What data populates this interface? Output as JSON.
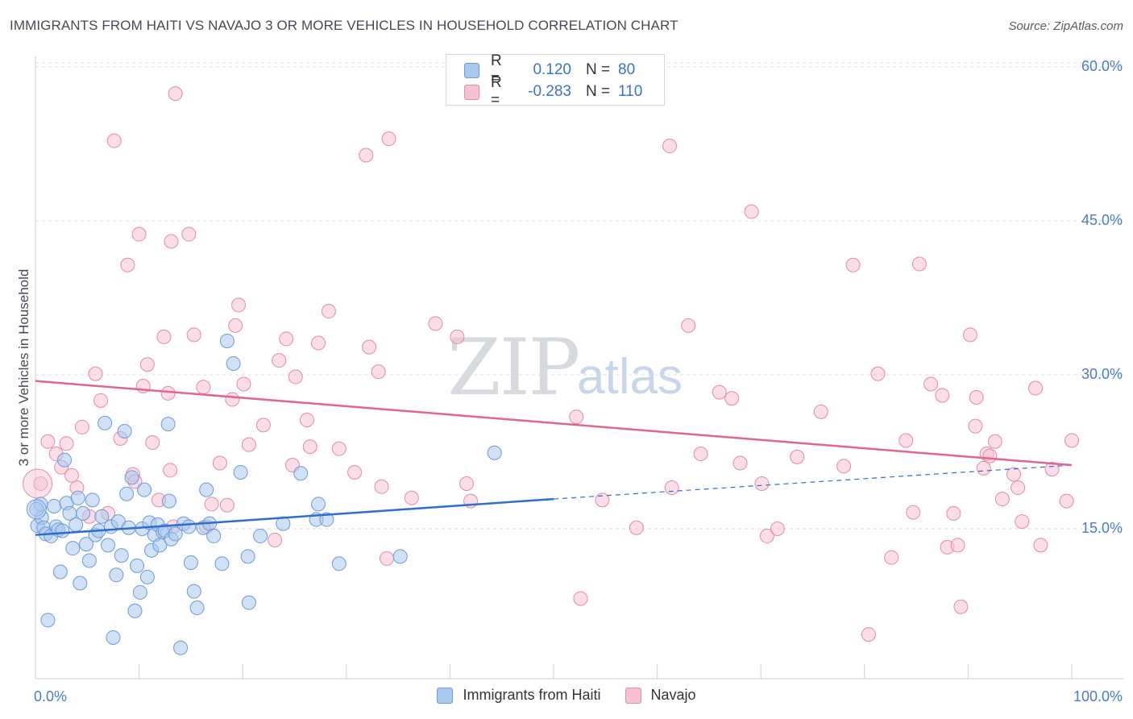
{
  "header": {
    "title": "IMMIGRANTS FROM HAITI VS NAVAJO 3 OR MORE VEHICLES IN HOUSEHOLD CORRELATION CHART",
    "source": "Source: ZipAtlas.com"
  },
  "watermark": {
    "zip": "ZIP",
    "atlas": "atlas"
  },
  "legend": {
    "rows": [
      {
        "r_label": "R =",
        "r_value": "0.120",
        "n_label": "N =",
        "n_value": "80",
        "color": "#a9c8ef",
        "stroke": "#6c9ad8"
      },
      {
        "r_label": "R =",
        "r_value": "-0.283",
        "n_label": "N =",
        "n_value": "110",
        "color": "#f6c1d2",
        "stroke": "#e58aa9"
      }
    ]
  },
  "bottom_legend": [
    {
      "label": "Immigrants from Haiti",
      "color": "#a9c8ef",
      "stroke": "#6c9ad8"
    },
    {
      "label": "Navajo",
      "color": "#f6c1d2",
      "stroke": "#e58aa9"
    }
  ],
  "chart_data": {
    "type": "scatter",
    "title": "IMMIGRANTS FROM HAITI VS NAVAJO 3 OR MORE VEHICLES IN HOUSEHOLD CORRELATION CHART",
    "xlabel": "",
    "ylabel": "3 or more Vehicles in Household",
    "xlim": [
      0,
      100
    ],
    "ylim": [
      0,
      60
    ],
    "x_tick_labels": [
      {
        "value": 0,
        "label": "0.0%"
      },
      {
        "value": 100,
        "label": "100.0%"
      }
    ],
    "y_tick_labels": [
      {
        "value": 15,
        "label": "15.0%"
      },
      {
        "value": 30,
        "label": "30.0%"
      },
      {
        "value": 45,
        "label": "45.0%"
      },
      {
        "value": 60,
        "label": "60.0%"
      }
    ],
    "grid": "horizontal dashed",
    "legend_position": "top-center",
    "series": [
      {
        "name": "Immigrants from Haiti",
        "color": "#a9c8ef",
        "stroke": "#6c9ad8",
        "trend": {
          "x0": 0,
          "y0": 15.5,
          "x1": 50,
          "y1": 19.0,
          "dash_to_x": 100,
          "dash_to_y": 22.3,
          "color": "#2d6fcc"
        },
        "points": [
          [
            0.2,
            16.4
          ],
          [
            0.5,
            18.5
          ],
          [
            0.6,
            17.2
          ],
          [
            0.8,
            16.2
          ],
          [
            1.0,
            15.6
          ],
          [
            1.2,
            7.2
          ],
          [
            1.5,
            15.4
          ],
          [
            1.8,
            18.3
          ],
          [
            2.0,
            16.3
          ],
          [
            2.2,
            16.0
          ],
          [
            2.4,
            11.9
          ],
          [
            2.6,
            15.9
          ],
          [
            2.8,
            22.8
          ],
          [
            3.0,
            18.6
          ],
          [
            3.3,
            17.6
          ],
          [
            3.6,
            14.2
          ],
          [
            3.9,
            16.5
          ],
          [
            4.1,
            19.1
          ],
          [
            4.3,
            10.8
          ],
          [
            4.6,
            17.6
          ],
          [
            4.9,
            14.6
          ],
          [
            5.2,
            13.0
          ],
          [
            5.5,
            18.9
          ],
          [
            5.8,
            15.5
          ],
          [
            6.1,
            15.9
          ],
          [
            6.4,
            17.3
          ],
          [
            6.7,
            26.4
          ],
          [
            7.0,
            14.5
          ],
          [
            7.3,
            16.3
          ],
          [
            7.5,
            5.5
          ],
          [
            7.8,
            11.6
          ],
          [
            8.0,
            16.8
          ],
          [
            8.3,
            13.5
          ],
          [
            8.6,
            25.6
          ],
          [
            8.8,
            19.5
          ],
          [
            9.0,
            16.2
          ],
          [
            9.3,
            21.1
          ],
          [
            9.6,
            8.1
          ],
          [
            9.8,
            12.5
          ],
          [
            10.1,
            9.9
          ],
          [
            10.3,
            16.1
          ],
          [
            10.5,
            19.9
          ],
          [
            10.8,
            11.4
          ],
          [
            11.0,
            16.7
          ],
          [
            11.2,
            14.0
          ],
          [
            11.5,
            15.5
          ],
          [
            11.8,
            16.5
          ],
          [
            12.0,
            14.5
          ],
          [
            12.3,
            15.8
          ],
          [
            12.5,
            15.9
          ],
          [
            12.8,
            26.3
          ],
          [
            12.9,
            18.8
          ],
          [
            13.1,
            15.1
          ],
          [
            13.5,
            15.6
          ],
          [
            14.0,
            4.5
          ],
          [
            14.3,
            16.6
          ],
          [
            14.8,
            16.3
          ],
          [
            15.0,
            12.8
          ],
          [
            15.3,
            10.0
          ],
          [
            15.6,
            8.4
          ],
          [
            16.2,
            16.2
          ],
          [
            16.5,
            19.9
          ],
          [
            16.8,
            16.6
          ],
          [
            17.2,
            15.4
          ],
          [
            18.0,
            12.7
          ],
          [
            18.5,
            34.4
          ],
          [
            19.1,
            32.2
          ],
          [
            19.8,
            21.6
          ],
          [
            20.5,
            13.4
          ],
          [
            20.6,
            8.9
          ],
          [
            21.7,
            15.4
          ],
          [
            23.9,
            16.6
          ],
          [
            25.6,
            21.5
          ],
          [
            27.1,
            17.0
          ],
          [
            27.3,
            18.5
          ],
          [
            28.1,
            17.0
          ],
          [
            29.3,
            12.7
          ],
          [
            35.2,
            13.4
          ],
          [
            44.3,
            23.5
          ],
          [
            0.1,
            18.0
          ]
        ]
      },
      {
        "name": "Navajo",
        "color": "#f6c1d2",
        "stroke": "#e58aa9",
        "trend": {
          "x0": 0,
          "y0": 30.5,
          "x1": 100,
          "y1": 22.3,
          "color": "#e0668f"
        },
        "points": [
          [
            0.5,
            20.5
          ],
          [
            1.2,
            24.6
          ],
          [
            2.0,
            23.4
          ],
          [
            2.5,
            22.1
          ],
          [
            3.0,
            24.4
          ],
          [
            3.5,
            21.3
          ],
          [
            4.0,
            20.1
          ],
          [
            4.5,
            26.0
          ],
          [
            5.2,
            17.3
          ],
          [
            5.8,
            31.2
          ],
          [
            6.3,
            28.6
          ],
          [
            7.0,
            17.6
          ],
          [
            7.6,
            53.9
          ],
          [
            8.2,
            24.9
          ],
          [
            8.9,
            41.8
          ],
          [
            9.4,
            21.4
          ],
          [
            9.6,
            20.7
          ],
          [
            10.0,
            44.8
          ],
          [
            10.4,
            30.0
          ],
          [
            10.8,
            32.1
          ],
          [
            11.3,
            24.5
          ],
          [
            11.9,
            18.9
          ],
          [
            12.4,
            34.8
          ],
          [
            12.8,
            29.3
          ],
          [
            13.1,
            44.1
          ],
          [
            13.3,
            16.3
          ],
          [
            13.0,
            21.8
          ],
          [
            13.5,
            58.5
          ],
          [
            14.8,
            44.8
          ],
          [
            15.3,
            35.0
          ],
          [
            16.2,
            29.9
          ],
          [
            16.5,
            16.3
          ],
          [
            17.0,
            18.5
          ],
          [
            17.8,
            22.5
          ],
          [
            18.5,
            18.4
          ],
          [
            19.0,
            28.7
          ],
          [
            19.3,
            35.9
          ],
          [
            19.6,
            37.9
          ],
          [
            20.1,
            30.2
          ],
          [
            20.6,
            24.3
          ],
          [
            22.0,
            26.2
          ],
          [
            23.1,
            15.0
          ],
          [
            23.5,
            32.5
          ],
          [
            24.2,
            34.6
          ],
          [
            24.8,
            22.3
          ],
          [
            25.1,
            30.9
          ],
          [
            26.2,
            26.7
          ],
          [
            26.5,
            24.1
          ],
          [
            27.3,
            34.2
          ],
          [
            28.3,
            37.3
          ],
          [
            29.3,
            23.9
          ],
          [
            30.8,
            21.6
          ],
          [
            31.9,
            52.5
          ],
          [
            32.2,
            33.8
          ],
          [
            33.1,
            31.4
          ],
          [
            33.4,
            20.2
          ],
          [
            33.9,
            13.2
          ],
          [
            34.1,
            54.1
          ],
          [
            36.3,
            19.1
          ],
          [
            38.6,
            36.1
          ],
          [
            40.7,
            34.8
          ],
          [
            41.6,
            20.5
          ],
          [
            42.0,
            18.8
          ],
          [
            52.2,
            27.0
          ],
          [
            52.6,
            9.3
          ],
          [
            54.7,
            18.9
          ],
          [
            58.0,
            16.2
          ],
          [
            61.2,
            53.4
          ],
          [
            61.4,
            20.1
          ],
          [
            63.0,
            35.9
          ],
          [
            64.2,
            23.4
          ],
          [
            66.0,
            29.4
          ],
          [
            67.2,
            28.8
          ],
          [
            68.0,
            22.5
          ],
          [
            69.1,
            47.0
          ],
          [
            70.1,
            20.5
          ],
          [
            70.6,
            15.4
          ],
          [
            71.6,
            16.1
          ],
          [
            73.5,
            23.1
          ],
          [
            75.8,
            27.5
          ],
          [
            78.0,
            22.2
          ],
          [
            78.9,
            41.8
          ],
          [
            80.4,
            5.8
          ],
          [
            81.3,
            31.2
          ],
          [
            82.6,
            13.3
          ],
          [
            84.0,
            24.7
          ],
          [
            84.7,
            17.7
          ],
          [
            85.3,
            41.9
          ],
          [
            86.4,
            30.2
          ],
          [
            87.5,
            29.1
          ],
          [
            88.0,
            14.3
          ],
          [
            88.6,
            17.6
          ],
          [
            89.0,
            14.5
          ],
          [
            89.3,
            8.5
          ],
          [
            90.2,
            35.0
          ],
          [
            90.7,
            26.1
          ],
          [
            90.8,
            28.9
          ],
          [
            91.5,
            22.0
          ],
          [
            91.8,
            23.4
          ],
          [
            92.1,
            23.2
          ],
          [
            92.6,
            24.6
          ],
          [
            93.3,
            19.0
          ],
          [
            94.4,
            21.4
          ],
          [
            94.8,
            20.1
          ],
          [
            95.2,
            16.8
          ],
          [
            96.5,
            29.8
          ],
          [
            97.0,
            14.5
          ],
          [
            98.1,
            21.9
          ],
          [
            99.5,
            18.8
          ],
          [
            100.0,
            24.7
          ]
        ]
      }
    ]
  }
}
